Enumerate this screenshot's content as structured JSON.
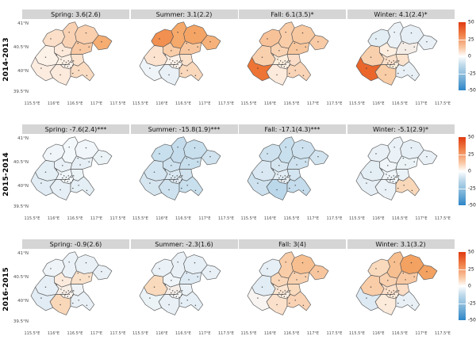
{
  "figure": {
    "background": "#ffffff"
  },
  "axes": {
    "y_ticks": [
      "41°N",
      "40.5°N",
      "40°N",
      "39.5°N"
    ],
    "x_ticks": [
      "115.5°E",
      "116°E",
      "116.5°E",
      "117°E",
      "117.5°E"
    ]
  },
  "legend": {
    "ticks": [
      "50",
      "25",
      "0",
      "-25",
      "-50"
    ],
    "gradient": [
      "#e03a12",
      "#f08048",
      "#f9c9a6",
      "#ffffff",
      "#c3dcec",
      "#7ab2d8",
      "#2e86c8"
    ]
  },
  "rows": [
    {
      "label": "2014-2013",
      "facets": [
        {
          "title": "Spring: 3.6(2.6)",
          "district_colors": [
            "#fbdfc8",
            "#f9d2b4",
            "#f9cfae",
            "#f5ad72",
            "#fce9da",
            "#f8c8a2",
            "#fdf2e8",
            "#fdf0e4",
            "#fbe2cc",
            "#fdf4ec",
            "#fcece0",
            "#fceadc",
            "#fadcc2"
          ]
        },
        {
          "title": "Summer: 3.1(2.2)",
          "district_colors": [
            "#f19050",
            "#f5a96a",
            "#f4a465",
            "#f6b27a",
            "#f9cda8",
            "#f8c69e",
            "#fbe3d0",
            "#fdf2ea",
            "#fbe0ca",
            "#fef6f0",
            "#eef4f8",
            "#e9f1f7",
            "#f9d8bc"
          ]
        },
        {
          "title": "Fall: 6.1(3.5)*",
          "district_colors": [
            "#f8c299",
            "#f9cda8",
            "#f8c8a0",
            "#f8cba6",
            "#f9d2b2",
            "#f8c69c",
            "#f9d0ae",
            "#fdeedd",
            "#fbdcc6",
            "#fdf2e6",
            "#ed7434",
            "#fcebdd",
            "#f9d4b6"
          ]
        },
        {
          "title": "Winter: 4.1(2.4)*",
          "district_colors": [
            "#e2edf4",
            "#ebf2f7",
            "#e6eff5",
            "#e9f1f7",
            "#fdeee0",
            "#f4ece6",
            "#f9d0ad",
            "#fbdfc8",
            "#fbe2cc",
            "#fceedd",
            "#ea662a",
            "#f9cda6",
            "#e9f1f6"
          ]
        }
      ]
    },
    {
      "label": "2015-2014",
      "facets": [
        {
          "title": "Spring: -7.6(2.4)***",
          "district_colors": [
            "#eff5f9",
            "#f3f8fb",
            "#f1f6fa",
            "#ebf3f7",
            "#e9f1f7",
            "#e6eff5",
            "#e4eef5",
            "#eff5f9",
            "#ebf3f7",
            "#f5f9fb",
            "#e1ecf4",
            "#e6eff5",
            "#e4eef5"
          ]
        },
        {
          "title": "Summer: -15.8(1.9)***",
          "district_colors": [
            "#c8dfed",
            "#c4dcec",
            "#c8dfed",
            "#d0e3ef",
            "#cde2ee",
            "#c8dfed",
            "#d3e5f0",
            "#d9e8f2",
            "#d0e3ef",
            "#dde9f3",
            "#d6e6f1",
            "#cde2ee",
            "#c8dfed"
          ]
        },
        {
          "title": "Fall: -17.1(4.3)***",
          "district_colors": [
            "#cde2ee",
            "#c8dfed",
            "#cde2ee",
            "#d2e4f0",
            "#d6e6f1",
            "#cde2ee",
            "#d9e8f2",
            "#e1ecf4",
            "#d3e5f0",
            "#e6eff5",
            "#cde2ee",
            "#bbd7ea",
            "#c4dcec"
          ]
        },
        {
          "title": "Winter: -5.1(2.9)*",
          "district_colors": [
            "#e9f1f7",
            "#ebf2f7",
            "#e6eff5",
            "#e9f1f7",
            "#eff5f9",
            "#ebf3f7",
            "#e4eef5",
            "#eef4f8",
            "#ebf2f7",
            "#f1f6fa",
            "#e6eff5",
            "#ebf2f7",
            "#f9d8ba"
          ]
        }
      ]
    },
    {
      "label": "2016-2015",
      "facets": [
        {
          "title": "Spring: -0.9(2.6)",
          "district_colors": [
            "#eef4f8",
            "#ebf2f7",
            "#e9f1f7",
            "#e9f1f7",
            "#fcebdd",
            "#f9e0c9",
            "#e6eff5",
            "#f7eee6",
            "#eff3f5",
            "#fdf5ee",
            "#e1ecf4",
            "#f9d8ba",
            "#e9f1f7"
          ]
        },
        {
          "title": "Summer: -2.3(1.6)",
          "district_colors": [
            "#ebf2f7",
            "#e9f1f7",
            "#e6eff5",
            "#e9f1f7",
            "#eff5f9",
            "#deeaf3",
            "#f9dabd",
            "#f5ede7",
            "#ebf2f7",
            "#f5f7f8",
            "#ebf3f7",
            "#e9f1f7",
            "#e6eff5"
          ]
        },
        {
          "title": "Fall: 3(4)",
          "district_colors": [
            "#e6eff5",
            "#f9cda8",
            "#f7bf90",
            "#f8c69e",
            "#f9d6b8",
            "#f9d0ae",
            "#e1ecf4",
            "#fbe4d0",
            "#f9dabd",
            "#fdf1e5",
            "#f7f4f2",
            "#fbe1cb",
            "#f9d2b4"
          ]
        },
        {
          "title": "Winter: 3.1(3.2)",
          "district_colors": [
            "#f9dabd",
            "#f7bf90",
            "#f3a262",
            "#f3a262",
            "#f9d0ae",
            "#f8c8a2",
            "#f9cda8",
            "#fbdfc8",
            "#fbdcc4",
            "#fdebdb",
            "#dde9f3",
            "#fcebdb",
            "#e9f1f7"
          ]
        }
      ]
    }
  ],
  "chart_data": {
    "type": "heatmap",
    "subtype": "faceted-choropleth-maps",
    "facet_rows": [
      "2014-2013",
      "2015-2014",
      "2016-2015"
    ],
    "facet_cols": [
      "Spring",
      "Summer",
      "Fall",
      "Winter"
    ],
    "values": [
      [
        3.6,
        3.1,
        6.1,
        4.1
      ],
      [
        -7.6,
        -15.8,
        -17.1,
        -5.1
      ],
      [
        -0.9,
        -2.3,
        3,
        3.1
      ]
    ],
    "std_errors": [
      [
        2.6,
        2.2,
        3.5,
        2.4
      ],
      [
        2.4,
        1.9,
        4.3,
        2.9
      ],
      [
        2.6,
        1.6,
        4,
        3.2
      ]
    ],
    "significance": [
      [
        "",
        "",
        "*",
        "*"
      ],
      [
        "***",
        "***",
        "***",
        "*"
      ],
      [
        "",
        "",
        "",
        ""
      ]
    ],
    "colorbar": {
      "ticks": [
        50,
        25,
        0,
        -25,
        -50
      ],
      "high_color": "#e03a12",
      "mid_color": "#ffffff",
      "low_color": "#2e86c8",
      "limits": [
        -50,
        50
      ],
      "position": "right"
    },
    "x_tick_labels": [
      "115.5°E",
      "116°E",
      "116.5°E",
      "117°E",
      "117.5°E"
    ],
    "y_tick_labels": [
      "41°N",
      "40.5°N",
      "40°N",
      "39.5°N"
    ],
    "grid": false,
    "legend_position": "right-of-each-row"
  }
}
